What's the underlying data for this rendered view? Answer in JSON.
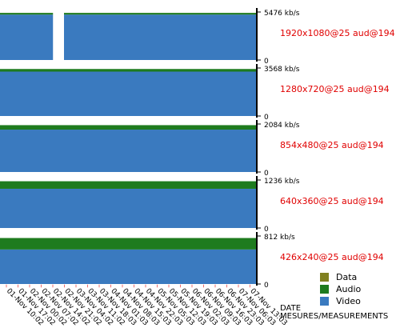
{
  "chart_data": {
    "type": "bar",
    "stacked": true,
    "legend_position": "bottom-right",
    "x_label_lines": [
      "DATE",
      "MESURES/MEASUREMENTS"
    ],
    "x_ticks": [
      "01-Nov 10:02",
      "01-Nov 17:02",
      "02-Nov 00:02",
      "02-Nov 07:02",
      "02-Nov 14:02",
      "02-Nov 21:02",
      "03-Nov 04:02",
      "03-Nov 11:02",
      "03-Nov 18:03",
      "04-Nov 01:03",
      "04-Nov 08:03",
      "04-Nov 15:03",
      "04-Nov 22:03",
      "05-Nov 05:03",
      "05-Nov 12:03",
      "05-Nov 19:03",
      "06-Nov 02:03",
      "06-Nov 09:03",
      "06-Nov 16:03",
      "06-Nov 23:03",
      "07-Nov 06:03",
      "07-Nov 13:03"
    ],
    "legend": [
      {
        "name": "Data",
        "color": "#808020"
      },
      {
        "name": "Audio",
        "color": "#1e7b1e"
      },
      {
        "name": "Video",
        "color": "#3a7abf"
      }
    ],
    "panels": [
      {
        "profile": "1920x1080@25 aud@194",
        "ymax_label": "5476 kb/s",
        "ymin_label": "0",
        "ymax": 5476,
        "video": 5180,
        "audio": 194,
        "data": 0,
        "gaps": [
          [
            0.207,
            0.25
          ]
        ]
      },
      {
        "profile": "1280x720@25 aud@194",
        "ymax_label": "3568 kb/s",
        "ymin_label": "0",
        "ymax": 3568,
        "video": 3300,
        "audio": 194,
        "data": 0,
        "gaps": []
      },
      {
        "profile": "854x480@25 aud@194",
        "ymax_label": "2084 kb/s",
        "ymin_label": "0",
        "ymax": 2084,
        "video": 1840,
        "audio": 194,
        "data": 0,
        "gaps": []
      },
      {
        "profile": "640x360@25 aud@194",
        "ymax_label": "1236 kb/s",
        "ymin_label": "0",
        "ymax": 1236,
        "video": 1010,
        "audio": 194,
        "data": 0,
        "gaps": []
      },
      {
        "profile": "426x240@25 aud@194",
        "ymax_label": "812 kb/s",
        "ymin_label": "0",
        "ymax": 812,
        "video": 584,
        "audio": 194,
        "data": 0,
        "gaps": []
      }
    ]
  },
  "colors": {
    "profile_text": "#e00000",
    "axis": "#000000",
    "tick_marker": "#e00000"
  }
}
